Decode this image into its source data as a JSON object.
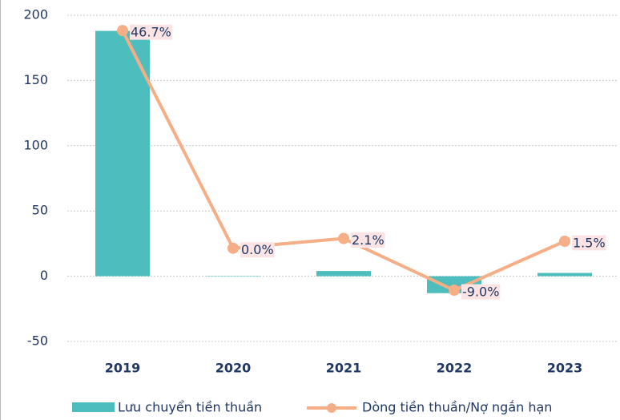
{
  "chart_data": {
    "type": "bar-line",
    "categories": [
      "2019",
      "2020",
      "2021",
      "2022",
      "2023"
    ],
    "series": [
      {
        "name": "Lưu chuyển tiền thuần",
        "type": "bar",
        "color": "#4dbdbd",
        "values": [
          188,
          0,
          4,
          -13,
          2.5
        ]
      },
      {
        "name": "Dòng tiền thuần/Nợ ngắn hạn",
        "type": "line",
        "axis": "y2",
        "color": "#f5ae86",
        "values": [
          46.7,
          0.0,
          2.1,
          -9.0,
          1.5
        ],
        "value_labels": [
          "46.7%",
          "0.0%",
          "2.1%",
          "-9.0%",
          "1.5%"
        ]
      }
    ],
    "ylim": [
      -50,
      200
    ],
    "yticks": [
      -50,
      0,
      50,
      100,
      150,
      200
    ],
    "y2lim": [
      -20,
      50
    ],
    "grid": true,
    "legend": "bottom"
  }
}
